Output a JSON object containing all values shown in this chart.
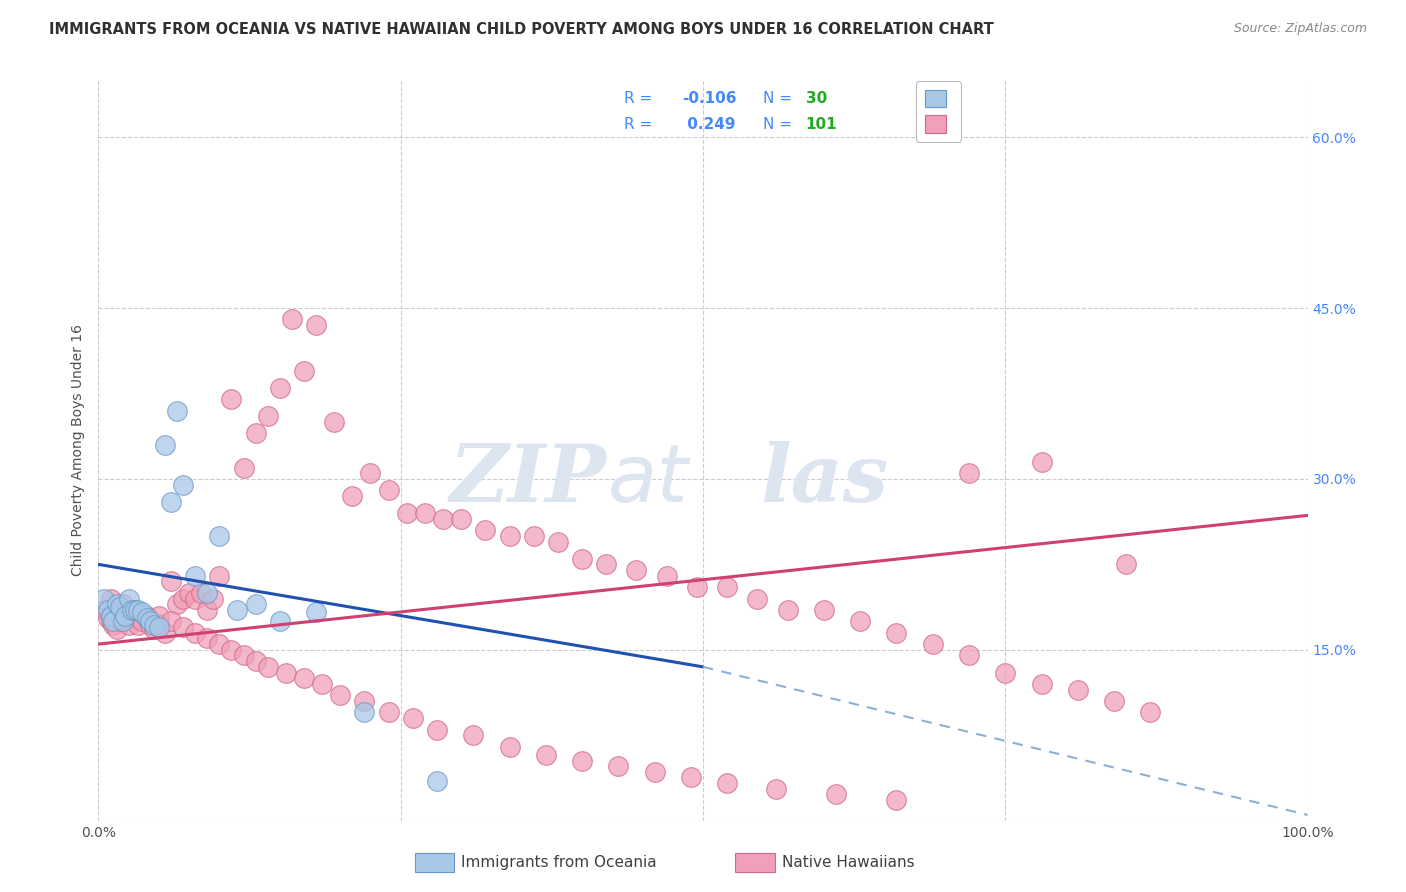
{
  "title": "IMMIGRANTS FROM OCEANIA VS NATIVE HAWAIIAN CHILD POVERTY AMONG BOYS UNDER 16 CORRELATION CHART",
  "source": "Source: ZipAtlas.com",
  "ylabel": "Child Poverty Among Boys Under 16",
  "xlim": [
    0.0,
    1.0
  ],
  "ylim": [
    0.0,
    0.65
  ],
  "x_ticks": [
    0.0,
    0.25,
    0.5,
    0.75,
    1.0
  ],
  "x_tick_labels": [
    "0.0%",
    "",
    "",
    "",
    "100.0%"
  ],
  "y_ticks": [
    0.0,
    0.15,
    0.3,
    0.45,
    0.6
  ],
  "y_tick_labels": [
    "",
    "15.0%",
    "30.0%",
    "45.0%",
    "60.0%"
  ],
  "blue_scatter_x": [
    0.005,
    0.008,
    0.01,
    0.012,
    0.015,
    0.018,
    0.02,
    0.022,
    0.025,
    0.028,
    0.03,
    0.033,
    0.036,
    0.04,
    0.043,
    0.046,
    0.05,
    0.055,
    0.06,
    0.065,
    0.07,
    0.08,
    0.09,
    0.1,
    0.115,
    0.13,
    0.15,
    0.18,
    0.22,
    0.28
  ],
  "blue_scatter_y": [
    0.195,
    0.185,
    0.18,
    0.175,
    0.19,
    0.188,
    0.175,
    0.18,
    0.195,
    0.185,
    0.185,
    0.185,
    0.183,
    0.178,
    0.175,
    0.172,
    0.17,
    0.33,
    0.28,
    0.36,
    0.295,
    0.215,
    0.2,
    0.25,
    0.185,
    0.19,
    0.175,
    0.183,
    0.095,
    0.035
  ],
  "pink_scatter_x": [
    0.005,
    0.008,
    0.01,
    0.012,
    0.015,
    0.018,
    0.02,
    0.022,
    0.025,
    0.028,
    0.03,
    0.033,
    0.036,
    0.04,
    0.043,
    0.046,
    0.05,
    0.055,
    0.06,
    0.065,
    0.07,
    0.075,
    0.08,
    0.085,
    0.09,
    0.095,
    0.1,
    0.11,
    0.12,
    0.13,
    0.14,
    0.15,
    0.16,
    0.17,
    0.18,
    0.195,
    0.21,
    0.225,
    0.24,
    0.255,
    0.27,
    0.285,
    0.3,
    0.32,
    0.34,
    0.36,
    0.38,
    0.4,
    0.42,
    0.445,
    0.47,
    0.495,
    0.52,
    0.545,
    0.57,
    0.6,
    0.63,
    0.66,
    0.69,
    0.72,
    0.75,
    0.78,
    0.81,
    0.84,
    0.87,
    0.01,
    0.02,
    0.03,
    0.04,
    0.05,
    0.06,
    0.07,
    0.08,
    0.09,
    0.1,
    0.11,
    0.12,
    0.13,
    0.14,
    0.155,
    0.17,
    0.185,
    0.2,
    0.22,
    0.24,
    0.26,
    0.28,
    0.31,
    0.34,
    0.37,
    0.4,
    0.43,
    0.46,
    0.49,
    0.52,
    0.56,
    0.61,
    0.66,
    0.72,
    0.78,
    0.85
  ],
  "pink_scatter_y": [
    0.185,
    0.178,
    0.175,
    0.172,
    0.168,
    0.175,
    0.183,
    0.178,
    0.172,
    0.18,
    0.178,
    0.172,
    0.175,
    0.178,
    0.172,
    0.168,
    0.173,
    0.165,
    0.21,
    0.19,
    0.195,
    0.2,
    0.195,
    0.2,
    0.185,
    0.195,
    0.215,
    0.37,
    0.31,
    0.34,
    0.355,
    0.38,
    0.44,
    0.395,
    0.435,
    0.35,
    0.285,
    0.305,
    0.29,
    0.27,
    0.27,
    0.265,
    0.265,
    0.255,
    0.25,
    0.25,
    0.245,
    0.23,
    0.225,
    0.22,
    0.215,
    0.205,
    0.205,
    0.195,
    0.185,
    0.185,
    0.175,
    0.165,
    0.155,
    0.145,
    0.13,
    0.12,
    0.115,
    0.105,
    0.095,
    0.195,
    0.19,
    0.185,
    0.18,
    0.18,
    0.175,
    0.17,
    0.165,
    0.16,
    0.155,
    0.15,
    0.145,
    0.14,
    0.135,
    0.13,
    0.125,
    0.12,
    0.11,
    0.105,
    0.095,
    0.09,
    0.08,
    0.075,
    0.065,
    0.058,
    0.052,
    0.048,
    0.043,
    0.038,
    0.033,
    0.028,
    0.023,
    0.018,
    0.305,
    0.315,
    0.225
  ],
  "blue_line": {
    "x0": 0.0,
    "y0": 0.225,
    "x1": 0.5,
    "y1": 0.135
  },
  "blue_dash_line": {
    "x0": 0.5,
    "y0": 0.135,
    "x1": 1.0,
    "y1": 0.005
  },
  "pink_line": {
    "x0": 0.0,
    "y0": 0.155,
    "x1": 1.0,
    "y1": 0.268
  },
  "blue_color": "#a8c8e8",
  "blue_edge_color": "#6898c8",
  "pink_color": "#f0a0b8",
  "pink_edge_color": "#d06888",
  "blue_line_color": "#2050b0",
  "pink_line_color": "#d04070",
  "dashed_line_color": "#8ab0d8",
  "background_color": "#ffffff",
  "grid_color": "#cccccc",
  "title_color": "#303030",
  "axis_label_color": "#505050",
  "right_tick_color": "#4488ff",
  "legend_r_color": "#4488ff",
  "legend_n_color": "#22aa22",
  "watermark_color": "#dde5f0"
}
